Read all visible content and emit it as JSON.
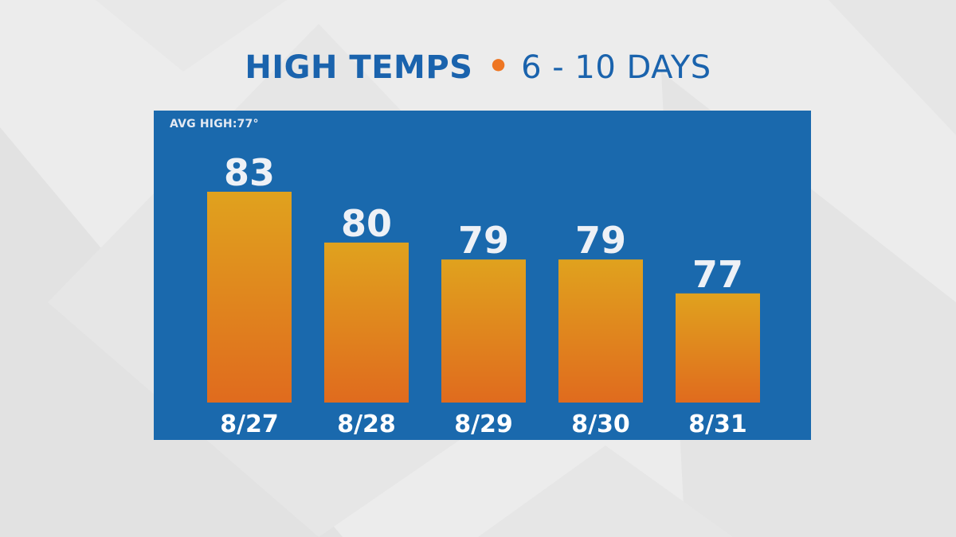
{
  "title": {
    "main": "HIGH TEMPS",
    "separator": "•",
    "sub": "6 - 10 DAYS"
  },
  "avg_high_label": "AVG HIGH:77°",
  "colors": {
    "title": "#1a63ad",
    "separator": "#ee7623",
    "panel": "#1a69ad",
    "bar_top": "#e0a21e",
    "bar_bottom": "#e06b1e",
    "label": "#eef1f6"
  },
  "chart_data": {
    "type": "bar",
    "categories": [
      "8/27",
      "8/28",
      "8/29",
      "8/30",
      "8/31"
    ],
    "values": [
      83,
      80,
      79,
      79,
      77
    ],
    "data_labels": [
      "83",
      "80",
      "79",
      "79",
      "77"
    ],
    "title": "HIGH TEMPS • 6 - 10 DAYS",
    "annotation": "AVG HIGH:77°",
    "xlabel": "",
    "ylabel": "",
    "grid": false,
    "legend": "none"
  }
}
